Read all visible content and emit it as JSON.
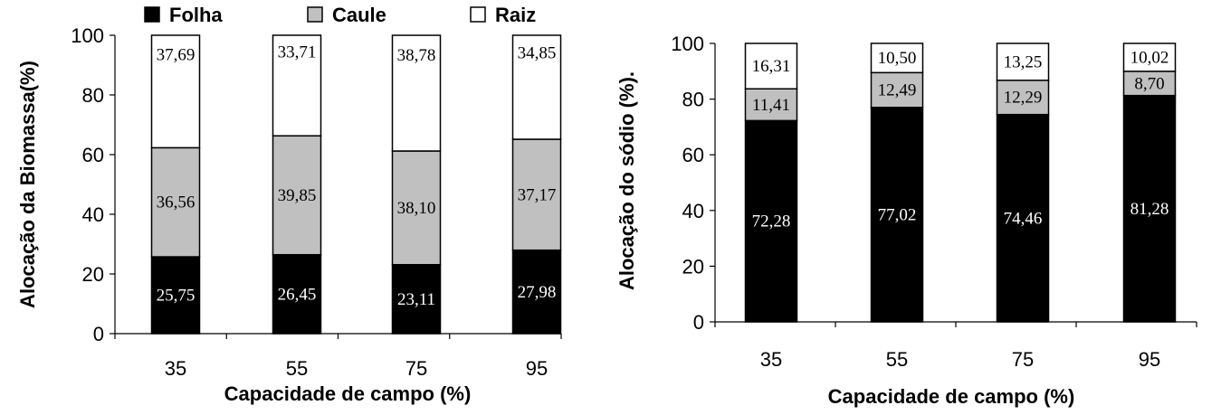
{
  "chart_data": [
    {
      "type": "bar",
      "stacked": true,
      "categories": [
        "35",
        "55",
        "75",
        "95"
      ],
      "series": [
        {
          "name": "Folha",
          "color": "#000000",
          "values": [
            25.75,
            26.45,
            23.11,
            27.98
          ],
          "labels": [
            "25,75",
            "26,45",
            "23,11",
            "27,98"
          ]
        },
        {
          "name": "Caule",
          "color": "#c0c0c0",
          "values": [
            36.56,
            39.85,
            38.1,
            37.17
          ],
          "labels": [
            "36,56",
            "39,85",
            "38,10",
            "37,17"
          ]
        },
        {
          "name": "Raiz",
          "color": "#ffffff",
          "values": [
            37.69,
            33.71,
            38.78,
            34.85
          ],
          "labels": [
            "37,69",
            "33,71",
            "38,78",
            "34,85"
          ]
        }
      ],
      "xlabel": "Capacidade de campo (%)",
      "ylabel": "Alocação da Biomassa(%)",
      "ylim": [
        0,
        100
      ],
      "yticks": [
        "0",
        "20",
        "40",
        "60",
        "80",
        "100"
      ],
      "legend": "top"
    },
    {
      "type": "bar",
      "stacked": true,
      "categories": [
        "35",
        "55",
        "75",
        "95"
      ],
      "series": [
        {
          "color": "#000000",
          "values": [
            72.28,
            77.02,
            74.46,
            81.28
          ],
          "labels": [
            "72,28",
            "77,02",
            "74,46",
            "81,28"
          ]
        },
        {
          "color": "#c0c0c0",
          "values": [
            11.41,
            12.49,
            12.29,
            8.7
          ],
          "labels": [
            "11,41",
            "12,49",
            "12,29",
            "8,70"
          ]
        },
        {
          "color": "#ffffff",
          "values": [
            16.31,
            10.5,
            13.25,
            10.02
          ],
          "labels": [
            "16,31",
            "10,50",
            "13,25",
            "10,02"
          ]
        }
      ],
      "xlabel": "Capacidade de campo (%)",
      "ylabel": "Alocação do sódio (%).",
      "ylim": [
        0,
        100
      ],
      "yticks": [
        "0",
        "20",
        "40",
        "60",
        "80",
        "100"
      ]
    }
  ]
}
